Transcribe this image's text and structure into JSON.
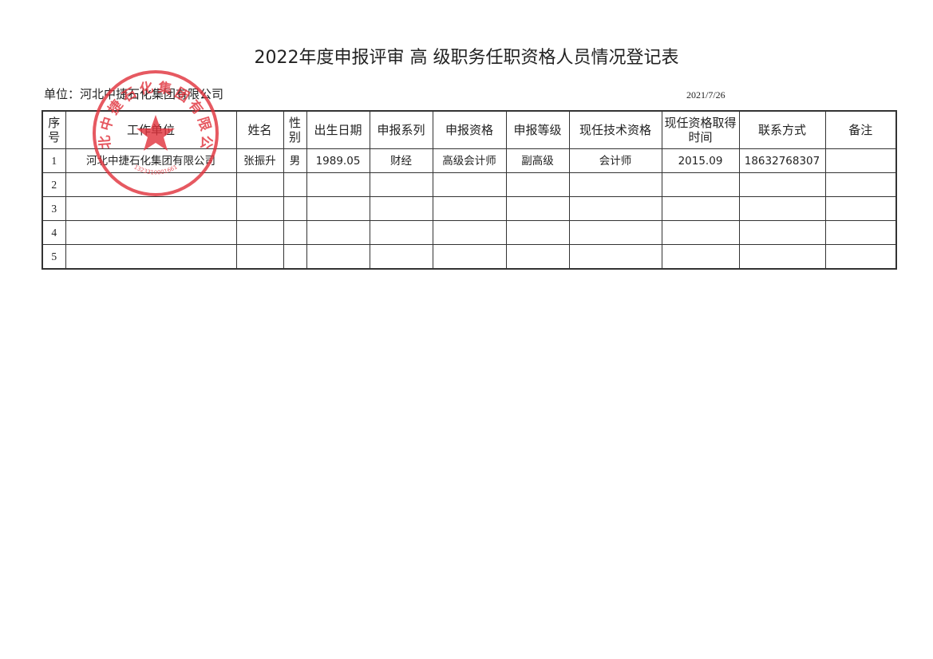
{
  "header": {
    "title": "2022年度申报评审 高 级职务任职资格人员情况登记表",
    "unit_label": "单位：",
    "unit": "河北中捷石化集团有限公司",
    "date": "2021/7/26"
  },
  "table": {
    "columns": [
      "序号",
      "工作单位",
      "姓名",
      "性别",
      "出生日期",
      "申报系列",
      "申报资格",
      "申报等级",
      "现任技术资格",
      "现任资格取得时间",
      "联系方式",
      "备注"
    ],
    "rows": [
      [
        "1",
        "河北中捷石化集团有限公司",
        "张振升",
        "男",
        "1989.05",
        "财经",
        "高级会计师",
        "副高级",
        "会计师",
        "2015.09",
        "18632768307"
      ],
      [
        "2"
      ],
      [
        "3"
      ],
      [
        "4"
      ],
      [
        "5"
      ]
    ]
  },
  "stamp": {
    "name": "河北中捷石化集团有限公司",
    "code": "1323310001661"
  }
}
